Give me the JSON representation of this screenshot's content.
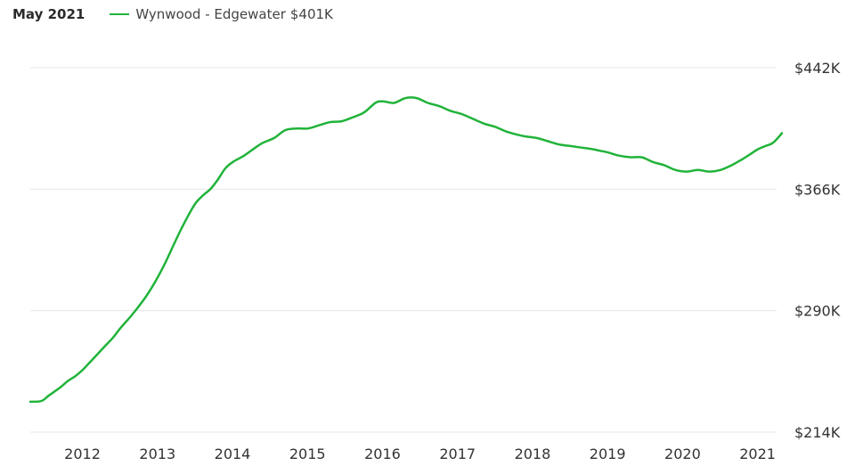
{
  "header": {
    "date_label": "May 2021",
    "legend_name": "Wynwood - Edgewater",
    "legend_value": "$401K"
  },
  "colors": {
    "series": "#21b33a",
    "grid": "#e6e6e6"
  },
  "chart_data": {
    "type": "line",
    "title": "",
    "xlabel": "",
    "ylabel": "",
    "ylim": [
      214,
      442
    ],
    "xlim": [
      2011.4,
      2021.42
    ],
    "y_axis_side": "right",
    "grid": "horizontal",
    "yticks": [
      {
        "value": 442,
        "label": "$442K"
      },
      {
        "value": 366,
        "label": "$366K"
      },
      {
        "value": 290,
        "label": "$290K"
      },
      {
        "value": 214,
        "label": "$214K"
      }
    ],
    "xticks": [
      {
        "value": 2012.0,
        "label": "2012"
      },
      {
        "value": 2013.0,
        "label": "2013"
      },
      {
        "value": 2014.0,
        "label": "2014"
      },
      {
        "value": 2015.0,
        "label": "2015"
      },
      {
        "value": 2016.0,
        "label": "2016"
      },
      {
        "value": 2017.0,
        "label": "2017"
      },
      {
        "value": 2018.0,
        "label": "2018"
      },
      {
        "value": 2019.0,
        "label": "2019"
      },
      {
        "value": 2020.0,
        "label": "2020"
      },
      {
        "value": 2021.0,
        "label": "2021"
      }
    ],
    "series": [
      {
        "name": "Wynwood - Edgewater",
        "x": [
          2011.4,
          2011.55,
          2011.65,
          2011.8,
          2011.9,
          2012.0,
          2012.1,
          2012.2,
          2012.3,
          2012.4,
          2012.5,
          2012.6,
          2012.75,
          2012.9,
          2013.0,
          2013.1,
          2013.2,
          2013.3,
          2013.4,
          2013.5,
          2013.6,
          2013.7,
          2013.8,
          2013.9,
          2014.0,
          2014.1,
          2014.25,
          2014.4,
          2014.5,
          2014.65,
          2014.8,
          2014.95,
          2015.1,
          2015.25,
          2015.4,
          2015.55,
          2015.7,
          2015.85,
          2016.0,
          2016.1,
          2016.25,
          2016.4,
          2016.55,
          2016.7,
          2016.85,
          2017.0,
          2017.15,
          2017.3,
          2017.45,
          2017.6,
          2017.75,
          2017.9,
          2018.0,
          2018.15,
          2018.3,
          2018.45,
          2018.6,
          2018.75,
          2018.9,
          2019.0,
          2019.1,
          2019.25,
          2019.4,
          2019.55,
          2019.7,
          2019.85,
          2020.0,
          2020.15,
          2020.3,
          2020.45,
          2020.6,
          2020.75,
          2020.9,
          2021.0,
          2021.1,
          2021.2,
          2021.3,
          2021.42
        ],
        "values": [
          233,
          233.5,
          237,
          242,
          246,
          249,
          253,
          258,
          263,
          268,
          273,
          279,
          287,
          296,
          303,
          311,
          320,
          330,
          340,
          349,
          357,
          362,
          366,
          372,
          379,
          383,
          387,
          392,
          395,
          398,
          403,
          404,
          404,
          406,
          408,
          408.5,
          411,
          414,
          420,
          421,
          420,
          423,
          423,
          420,
          418,
          415,
          413,
          410,
          407,
          405,
          402,
          400,
          399,
          398,
          396,
          394,
          393,
          392,
          391,
          390,
          389,
          387,
          386,
          386,
          383,
          381,
          378,
          377,
          378,
          377,
          378,
          381,
          385,
          388,
          391,
          393,
          395,
          401
        ]
      }
    ]
  }
}
